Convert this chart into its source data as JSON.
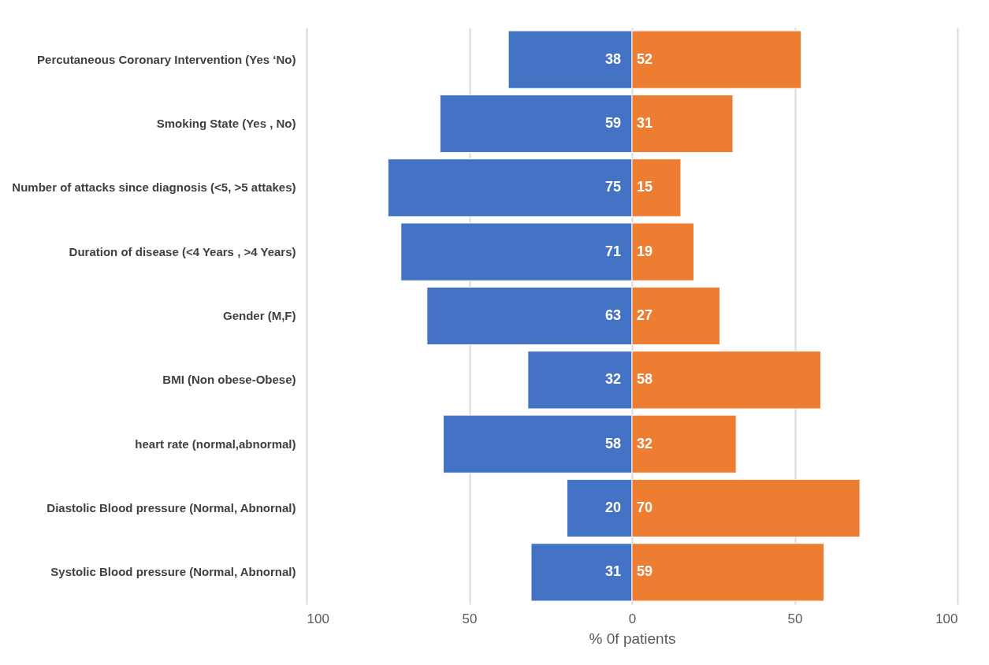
{
  "chart_data": {
    "type": "bar",
    "orientation": "horizontal",
    "xlabel": "% 0f patients",
    "categories": [
      "Percutaneous Coronary Intervention (Yes ‘No)",
      "Smoking State  (Yes , No)",
      "Number of attacks since diagnosis  (<5, >5 attakes)",
      "Duration of disease (<4 Years , >4 Years)",
      "Gender (M,F)",
      "BMI (Non obese-Obese)",
      "heart rate (normal,abnormal)",
      "Diastolic Blood pressure  (Normal, Abnornal)",
      "Systolic Blood pressure (Normal, Abnornal)"
    ],
    "series": [
      {
        "color": "#4472c4",
        "values": [
          38,
          59,
          75,
          71,
          63,
          32,
          58,
          20,
          31
        ],
        "base": [
          -38,
          -59,
          -75,
          -71,
          -63,
          -32,
          -58,
          -20,
          -31
        ]
      },
      {
        "color": "#ed7d31",
        "values": [
          52,
          31,
          15,
          19,
          27,
          58,
          32,
          70,
          59
        ]
      }
    ],
    "data_labels": true,
    "xlim": [
      -100,
      100
    ],
    "xticks": [
      {
        "value": -100,
        "label": "100"
      },
      {
        "value": -50,
        "label": "50"
      },
      0,
      50,
      100
    ],
    "grid": "x"
  }
}
